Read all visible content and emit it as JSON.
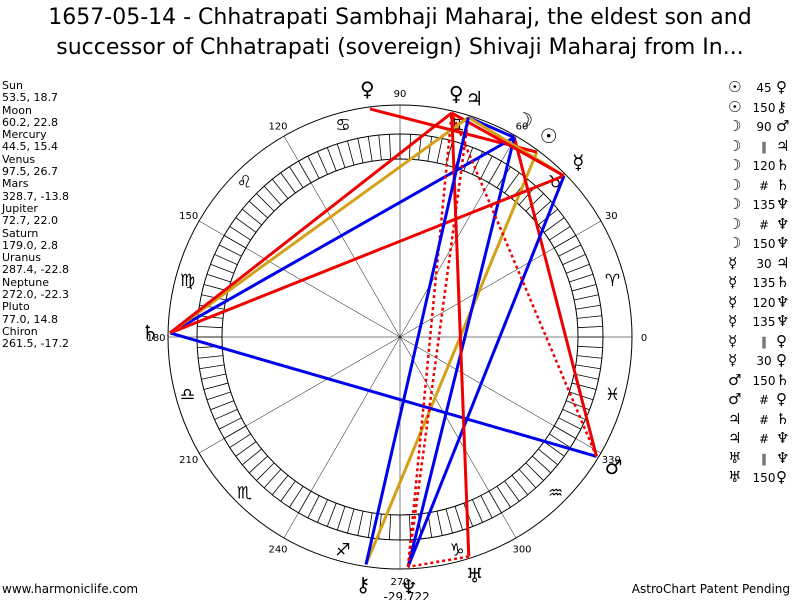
{
  "title": {
    "line1": "1657-05-14 - Chhatrapati Sambhaji Maharaj, the eldest son and",
    "line2": "successor of Chhatrapati (sovereign) Shivaji Maharaj from In..."
  },
  "positions": [
    {
      "name": "Sun",
      "value": "53.5, 18.7"
    },
    {
      "name": "Moon",
      "value": "60.2, 22.8"
    },
    {
      "name": "Mercury",
      "value": "44.5, 15.4"
    },
    {
      "name": "Venus",
      "value": "97.5, 26.7"
    },
    {
      "name": "Mars",
      "value": "328.7, -13.8"
    },
    {
      "name": "Jupiter",
      "value": "72.7, 22.0"
    },
    {
      "name": "Saturn",
      "value": "179.0, 2.8"
    },
    {
      "name": "Uranus",
      "value": "287.4, -22.8"
    },
    {
      "name": "Neptune",
      "value": "272.0, -22.3"
    },
    {
      "name": "Pluto",
      "value": "77.0, 14.8"
    },
    {
      "name": "Chiron",
      "value": "261.5, -17.2"
    }
  ],
  "aspects": [
    {
      "p1": "☉",
      "angle": "45",
      "p2": "♀"
    },
    {
      "p1": "☉",
      "angle": "150",
      "p2": "⚷"
    },
    {
      "p1": "☽",
      "angle": "90",
      "p2": "♂"
    },
    {
      "p1": "☽",
      "angle": "∥",
      "p2": "♃"
    },
    {
      "p1": "☽",
      "angle": "120",
      "p2": "♄"
    },
    {
      "p1": "☽",
      "angle": "#",
      "p2": "♄"
    },
    {
      "p1": "☽",
      "angle": "135",
      "p2": "♆"
    },
    {
      "p1": "☽",
      "angle": "#",
      "p2": "♆"
    },
    {
      "p1": "☽",
      "angle": "150",
      "p2": "♆"
    },
    {
      "p1": "☿",
      "angle": "30",
      "p2": "♃"
    },
    {
      "p1": "☿",
      "angle": "135",
      "p2": "♄"
    },
    {
      "p1": "☿",
      "angle": "120",
      "p2": "♆"
    },
    {
      "p1": "☿",
      "angle": "135",
      "p2": "♆"
    },
    {
      "p1": "☿",
      "angle": "∥",
      "p2": "♀"
    },
    {
      "p1": "☿",
      "angle": "30",
      "p2": "♀"
    },
    {
      "p1": "♂",
      "angle": "150",
      "p2": "♄"
    },
    {
      "p1": "♂",
      "angle": "#",
      "p2": "♀"
    },
    {
      "p1": "♃",
      "angle": "#",
      "p2": "♄"
    },
    {
      "p1": "♃",
      "angle": "#",
      "p2": "♆"
    },
    {
      "p1": "♅",
      "angle": "∥",
      "p2": "♆"
    },
    {
      "p1": "♅",
      "angle": "150",
      "p2": "♀"
    }
  ],
  "wheel": {
    "degree_labels": [
      "0",
      "30",
      "60",
      "90",
      "120",
      "150",
      "180",
      "210",
      "240",
      "270",
      "300",
      "330"
    ],
    "zodiac": [
      "♈",
      "♉",
      "♊",
      "♋",
      "♌",
      "♍",
      "♎",
      "♏",
      "♐",
      "♑",
      "♒",
      "♓"
    ],
    "planets": [
      {
        "id": "sun",
        "glyph": "☉",
        "lon": 53.5
      },
      {
        "id": "moon",
        "glyph": "☽",
        "lon": 60.2
      },
      {
        "id": "mercury",
        "glyph": "☿",
        "lon": 44.5
      },
      {
        "id": "venus",
        "glyph": "♀",
        "lon": 97.5
      },
      {
        "id": "mars",
        "glyph": "♂",
        "lon": 328.7
      },
      {
        "id": "jupiter",
        "glyph": "♃",
        "lon": 72.7
      },
      {
        "id": "saturn",
        "glyph": "♄",
        "lon": 179.0
      },
      {
        "id": "uranus",
        "glyph": "♅",
        "lon": 287.4
      },
      {
        "id": "neptune",
        "glyph": "♆",
        "lon": 272.0
      },
      {
        "id": "pluto",
        "glyph": "♀",
        "lon": 77.0
      },
      {
        "id": "chiron",
        "glyph": "⚷",
        "lon": 261.5
      }
    ],
    "aspect_lines": [
      {
        "a": "sun",
        "b": "chiron",
        "color": "#d4a017",
        "style": "solid"
      },
      {
        "a": "sun",
        "b": "venus",
        "color": "#ee0000",
        "style": "solid"
      },
      {
        "a": "moon",
        "b": "mars",
        "color": "#ee0000",
        "style": "solid"
      },
      {
        "a": "moon",
        "b": "saturn",
        "color": "#0000ee",
        "style": "solid"
      },
      {
        "a": "moon",
        "b": "neptune",
        "color": "#0000ee",
        "style": "solid"
      },
      {
        "a": "moon",
        "b": "jupiter",
        "color": "#0000ee",
        "style": "solid"
      },
      {
        "a": "mercury",
        "b": "saturn",
        "color": "#ee0000",
        "style": "solid"
      },
      {
        "a": "mercury",
        "b": "neptune",
        "color": "#0000ee",
        "style": "solid"
      },
      {
        "a": "mercury",
        "b": "jupiter",
        "color": "#d4a017",
        "style": "solid"
      },
      {
        "a": "mercury",
        "b": "pluto",
        "color": "#ee0000",
        "style": "solid"
      },
      {
        "a": "mars",
        "b": "saturn",
        "color": "#0000ee",
        "style": "solid"
      },
      {
        "a": "mars",
        "b": "pluto",
        "color": "#ee0000",
        "style": "dotted"
      },
      {
        "a": "jupiter",
        "b": "saturn",
        "color": "#d4a017",
        "style": "solid"
      },
      {
        "a": "jupiter",
        "b": "neptune",
        "color": "#ee0000",
        "style": "dotted"
      },
      {
        "a": "uranus",
        "b": "pluto",
        "color": "#ee0000",
        "style": "solid"
      },
      {
        "a": "uranus",
        "b": "neptune",
        "color": "#ee0000",
        "style": "dotted"
      },
      {
        "a": "neptune",
        "b": "pluto",
        "color": "#ee0000",
        "style": "dotted"
      },
      {
        "a": "saturn",
        "b": "pluto",
        "color": "#ee0000",
        "style": "solid"
      },
      {
        "a": "chiron",
        "b": "jupiter",
        "color": "#0000ee",
        "style": "solid"
      }
    ],
    "axis_labels": {
      "asc": "-29,722",
      "right": "0",
      "left": "180"
    }
  },
  "footer": {
    "left": "www.harmoniclife.com",
    "right": "AstroChart Patent Pending"
  }
}
